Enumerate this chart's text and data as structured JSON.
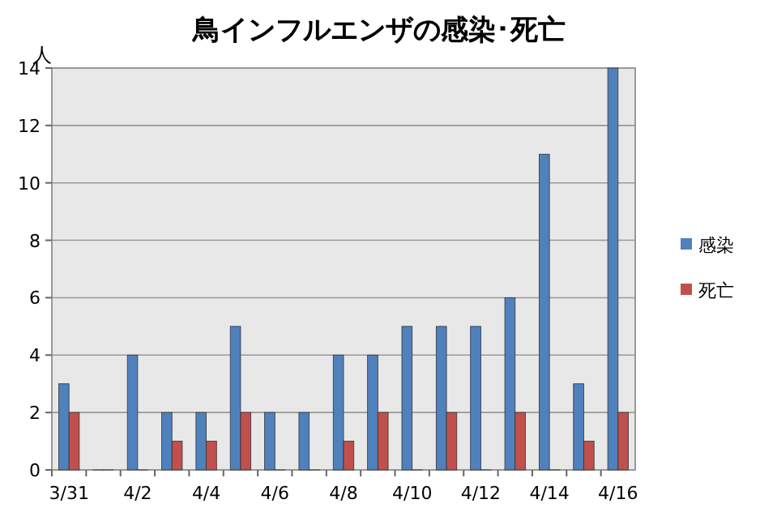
{
  "chart_data": {
    "type": "bar",
    "title": "鳥インフルエンザの感染･死亡",
    "ylabel": "人",
    "categories": [
      "3/31",
      null,
      "4/2",
      null,
      "4/4",
      null,
      "4/6",
      null,
      "4/8",
      null,
      "4/10",
      null,
      "4/12",
      null,
      "4/14",
      null,
      "4/16"
    ],
    "series": [
      {
        "name": "感染",
        "color": "#4f81bd",
        "values": [
          3,
          0,
          4,
          2,
          2,
          5,
          2,
          2,
          4,
          4,
          5,
          5,
          5,
          6,
          11,
          3,
          14
        ]
      },
      {
        "name": "死亡",
        "color": "#c0504d",
        "values": [
          2,
          0,
          0,
          1,
          1,
          2,
          0,
          0,
          1,
          2,
          0,
          2,
          0,
          2,
          0,
          1,
          2
        ]
      }
    ],
    "ylim": [
      0,
      14
    ],
    "yticks": [
      0,
      2,
      4,
      6,
      8,
      10,
      12,
      14
    ],
    "grid": "y",
    "legend": "right"
  }
}
